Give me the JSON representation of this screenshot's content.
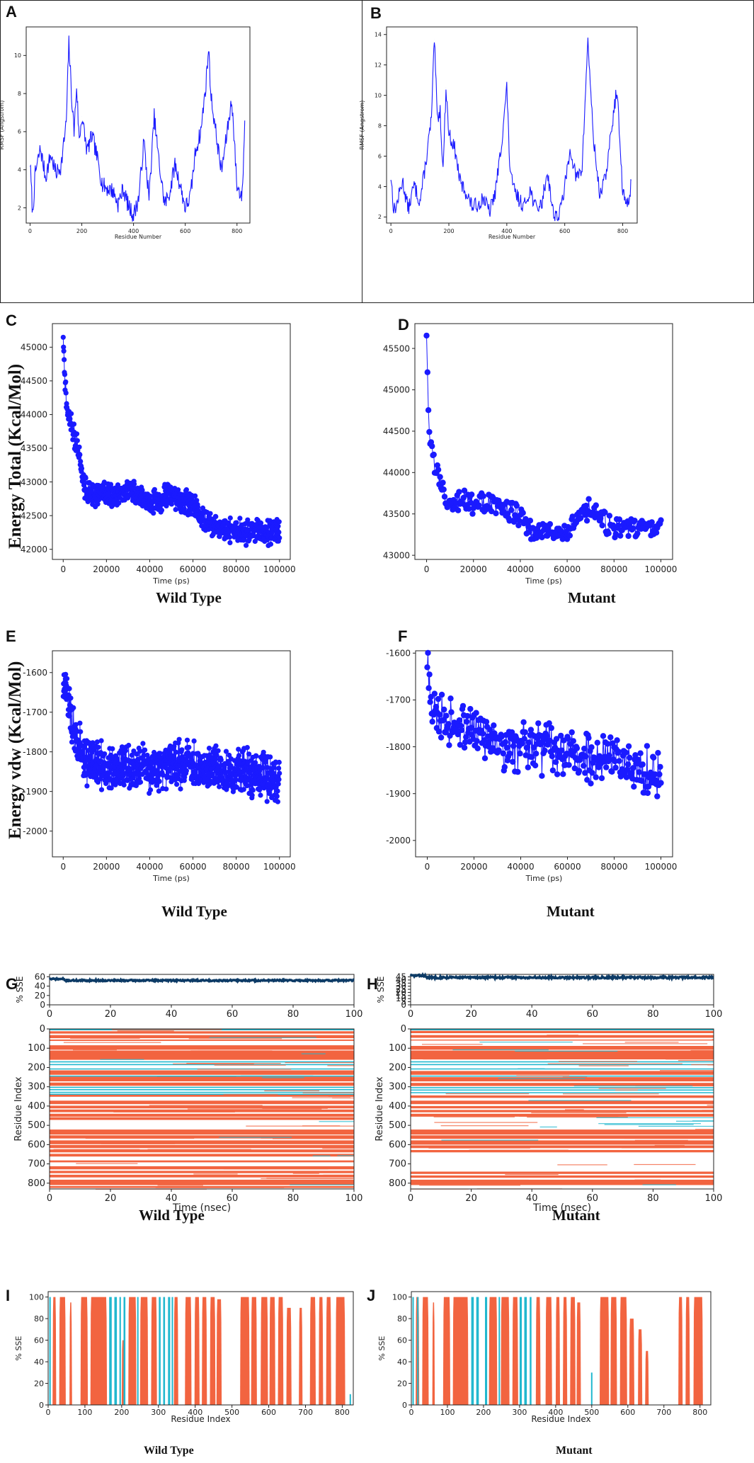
{
  "panels": {
    "A": "A",
    "B": "B",
    "C": "C",
    "D": "D",
    "E": "E",
    "F": "F",
    "G": "G",
    "H": "H",
    "I": "I",
    "J": "J"
  },
  "captions": {
    "wild_type": "Wild Type",
    "mutant": "Mutant"
  },
  "row_labels": {
    "energy_total": "Energy Total (Kcal/Mol)",
    "energy_vdw": "Energy vdw (Kcal/Mol)"
  },
  "colors": {
    "line": "#1a1aff",
    "sse_line": "#0d3b66",
    "helix": "#f26440",
    "strand": "#22b8cf"
  },
  "chart_data": [
    {
      "id": "A",
      "type": "line",
      "xlabel": "Residue Number",
      "ylabel": "RMSF (Angstrom)",
      "xlim": [
        -15,
        850
      ],
      "ylim": [
        1.2,
        11.5
      ],
      "xticks": [
        0,
        200,
        400,
        600,
        800
      ],
      "yticks": [
        2,
        4,
        6,
        8,
        10
      ],
      "x": [
        0,
        10,
        20,
        40,
        60,
        80,
        100,
        120,
        140,
        150,
        160,
        170,
        180,
        190,
        200,
        220,
        240,
        260,
        280,
        300,
        320,
        340,
        360,
        380,
        400,
        420,
        440,
        460,
        480,
        500,
        520,
        540,
        560,
        580,
        600,
        620,
        640,
        660,
        680,
        690,
        700,
        720,
        740,
        760,
        780,
        800,
        820,
        830
      ],
      "values": [
        4.4,
        1.6,
        3.8,
        5.1,
        3.6,
        4.8,
        3.8,
        4.2,
        6.5,
        10.7,
        8.0,
        6.0,
        8.4,
        5.5,
        6.8,
        5.0,
        5.8,
        4.6,
        3.2,
        3.0,
        2.9,
        2.2,
        3.0,
        2.1,
        1.6,
        2.5,
        5.5,
        2.5,
        6.8,
        4.2,
        2.2,
        2.8,
        4.3,
        3.2,
        2.0,
        2.6,
        5.0,
        6.0,
        8.5,
        10.4,
        7.8,
        5.8,
        3.9,
        5.8,
        7.7,
        3.1,
        2.6,
        6.4
      ]
    },
    {
      "id": "B",
      "type": "line",
      "xlabel": "Residue Number",
      "ylabel": "RMSF (Angstrom)",
      "xlim": [
        -15,
        850
      ],
      "ylim": [
        1.6,
        14.5
      ],
      "xticks": [
        0,
        200,
        400,
        600,
        800
      ],
      "yticks": [
        2,
        4,
        6,
        8,
        10,
        12,
        14
      ],
      "x": [
        0,
        10,
        20,
        40,
        60,
        80,
        100,
        120,
        140,
        150,
        160,
        170,
        180,
        190,
        200,
        220,
        240,
        260,
        280,
        300,
        320,
        340,
        360,
        380,
        400,
        410,
        420,
        440,
        460,
        480,
        500,
        520,
        540,
        560,
        580,
        600,
        620,
        640,
        660,
        680,
        690,
        700,
        720,
        740,
        760,
        780,
        800,
        820,
        830
      ],
      "values": [
        4.7,
        2.4,
        2.8,
        4.4,
        2.5,
        4.1,
        3.0,
        5.5,
        8.5,
        13.7,
        8.5,
        9.0,
        5.0,
        10.5,
        7.5,
        6.5,
        4.2,
        3.6,
        2.7,
        2.8,
        3.3,
        2.3,
        3.6,
        6.5,
        10.5,
        5.5,
        4.0,
        3.2,
        2.7,
        3.8,
        2.6,
        2.8,
        5.0,
        2.3,
        2.0,
        4.0,
        6.5,
        4.5,
        5.2,
        13.8,
        10.0,
        7.0,
        3.5,
        4.5,
        7.5,
        10.5,
        3.5,
        2.8,
        4.5
      ]
    },
    {
      "id": "C",
      "type": "line",
      "xlabel": "Time (ps)",
      "ylabel": "Energy Total (Kcal/Mol)",
      "xlim": [
        -5000,
        105000
      ],
      "ylim": [
        41850,
        45350
      ],
      "xticks": [
        0,
        20000,
        40000,
        60000,
        80000,
        100000
      ],
      "yticks": [
        42000,
        42500,
        43000,
        43500,
        44000,
        44500,
        45000
      ],
      "x": [
        0,
        1000,
        2000,
        4000,
        6000,
        8000,
        10000,
        15000,
        20000,
        25000,
        30000,
        35000,
        40000,
        45000,
        50000,
        55000,
        60000,
        63000,
        65000,
        70000,
        75000,
        80000,
        85000,
        90000,
        95000,
        100000
      ],
      "values": [
        45200,
        44400,
        44000,
        43800,
        43600,
        43300,
        42900,
        42800,
        42850,
        42750,
        42900,
        42800,
        42700,
        42750,
        42800,
        42700,
        42700,
        42500,
        42450,
        42350,
        42300,
        42250,
        42250,
        42280,
        42250,
        42250
      ],
      "noise": 220
    },
    {
      "id": "D",
      "type": "line",
      "xlabel": "Time (ps)",
      "ylabel": "Energy Total (Kcal/Mol)",
      "xlim": [
        -5000,
        105000
      ],
      "ylim": [
        42950,
        45800
      ],
      "xticks": [
        0,
        20000,
        40000,
        60000,
        80000,
        100000
      ],
      "yticks": [
        43000,
        43500,
        44000,
        44500,
        45000,
        45500
      ],
      "x": [
        0,
        1000,
        2000,
        4000,
        6000,
        8000,
        10000,
        15000,
        20000,
        25000,
        30000,
        35000,
        40000,
        45000,
        50000,
        55000,
        60000,
        65000,
        70000,
        75000,
        80000,
        85000,
        90000,
        95000,
        100000
      ],
      "values": [
        45700,
        44500,
        44300,
        44000,
        43900,
        43700,
        43650,
        43700,
        43600,
        43650,
        43600,
        43550,
        43500,
        43300,
        43350,
        43300,
        43250,
        43450,
        43550,
        43450,
        43300,
        43300,
        43350,
        43300,
        43350
      ],
      "noise": 170
    },
    {
      "id": "E",
      "type": "line",
      "xlabel": "Time (ps)",
      "ylabel": "Energy vdw (Kcal/Mol)",
      "xlim": [
        -5000,
        105000
      ],
      "ylim": [
        -2065,
        -1545
      ],
      "xticks": [
        0,
        20000,
        40000,
        60000,
        80000,
        100000
      ],
      "yticks": [
        -2000,
        -1900,
        -1800,
        -1700,
        -1600
      ],
      "x": [
        0,
        1000,
        2000,
        4000,
        6000,
        8000,
        10000,
        20000,
        30000,
        40000,
        50000,
        60000,
        70000,
        80000,
        90000,
        100000
      ],
      "values": [
        -1640,
        -1630,
        -1680,
        -1720,
        -1760,
        -1790,
        -1820,
        -1840,
        -1845,
        -1840,
        -1830,
        -1840,
        -1840,
        -1850,
        -1860,
        -1870
      ],
      "noise": 70
    },
    {
      "id": "F",
      "type": "line",
      "xlabel": "Time (ps)",
      "ylabel": "Energy vdw (Kcal/Mol)",
      "xlim": [
        -5000,
        105000
      ],
      "ylim": [
        -2035,
        -1595
      ],
      "xticks": [
        0,
        20000,
        40000,
        60000,
        80000,
        100000
      ],
      "yticks": [
        -2000,
        -1900,
        -1800,
        -1700,
        -1600
      ],
      "x": [
        0,
        1000,
        2000,
        5000,
        10000,
        20000,
        30000,
        40000,
        50000,
        60000,
        70000,
        80000,
        90000,
        100000
      ],
      "values": [
        -1610,
        -1700,
        -1720,
        -1740,
        -1750,
        -1770,
        -1800,
        -1800,
        -1800,
        -1810,
        -1820,
        -1830,
        -1840,
        -1880
      ],
      "noise": 65
    },
    {
      "id": "G",
      "type": "heatmap",
      "top_ylabel": "% SSE",
      "top_yticks": [
        0,
        20,
        40,
        60
      ],
      "top_ylim": [
        0,
        65
      ],
      "top_level": 52,
      "xlabel": "Time (nsec)",
      "ylabel": "Residue Index",
      "xlim": [
        0,
        100
      ],
      "xticks": [
        0,
        20,
        40,
        60,
        80,
        100
      ],
      "yticks": [
        0,
        100,
        200,
        300,
        400,
        500,
        600,
        700,
        800
      ],
      "ylim": [
        0,
        830
      ],
      "helix_bands": [
        [
          12,
          24
        ],
        [
          32,
          48
        ],
        [
          55,
          62
        ],
        [
          85,
          108
        ],
        [
          112,
          160
        ],
        [
          215,
          238
        ],
        [
          248,
          272
        ],
        [
          278,
          295
        ],
        [
          338,
          352
        ],
        [
          372,
          390
        ],
        [
          398,
          412
        ],
        [
          418,
          432
        ],
        [
          440,
          455
        ],
        [
          458,
          472
        ],
        [
          522,
          548
        ],
        [
          552,
          568
        ],
        [
          578,
          598
        ],
        [
          602,
          618
        ],
        [
          625,
          640
        ],
        [
          648,
          662
        ],
        [
          682,
          692
        ],
        [
          712,
          728
        ],
        [
          736,
          748
        ],
        [
          756,
          770
        ],
        [
          782,
          810
        ],
        [
          815,
          825
        ]
      ],
      "strand_bands": [
        [
          2,
          6
        ],
        [
          168,
          174
        ],
        [
          182,
          188
        ],
        [
          205,
          210
        ],
        [
          242,
          245
        ],
        [
          300,
          306
        ],
        [
          312,
          318
        ],
        [
          326,
          330
        ],
        [
          336,
          339
        ]
      ]
    },
    {
      "id": "H",
      "type": "heatmap",
      "top_ylabel": "% SSE",
      "top_yticks": [
        0,
        5,
        10,
        15,
        20,
        25,
        30,
        35,
        40,
        45
      ],
      "top_ylim": [
        0,
        49
      ],
      "top_level": 44,
      "xlabel": "Time (nsec)",
      "ylabel": "Residue Index",
      "xlim": [
        0,
        100
      ],
      "xticks": [
        0,
        20,
        40,
        60,
        80,
        100
      ],
      "yticks": [
        0,
        100,
        200,
        300,
        400,
        500,
        600,
        700,
        800
      ],
      "ylim": [
        0,
        830
      ],
      "helix_bands": [
        [
          10,
          22
        ],
        [
          32,
          46
        ],
        [
          55,
          60
        ],
        [
          88,
          108
        ],
        [
          112,
          158
        ],
        [
          218,
          238
        ],
        [
          250,
          272
        ],
        [
          280,
          296
        ],
        [
          345,
          358
        ],
        [
          372,
          390
        ],
        [
          400,
          412
        ],
        [
          420,
          432
        ],
        [
          440,
          455
        ],
        [
          522,
          548
        ],
        [
          552,
          570
        ],
        [
          578,
          600
        ],
        [
          604,
          618
        ],
        [
          628,
          640
        ],
        [
          740,
          752
        ],
        [
          760,
          772
        ],
        [
          782,
          810
        ]
      ],
      "strand_bands": [
        [
          2,
          6
        ],
        [
          168,
          174
        ],
        [
          182,
          188
        ],
        [
          205,
          210
        ],
        [
          242,
          245
        ],
        [
          302,
          308
        ],
        [
          314,
          320
        ],
        [
          328,
          333
        ]
      ]
    },
    {
      "id": "I",
      "type": "area",
      "xlabel": "Residue Index",
      "ylabel": "% SSE",
      "xlim": [
        0,
        830
      ],
      "ylim": [
        0,
        105
      ],
      "xticks": [
        0,
        100,
        200,
        300,
        400,
        500,
        600,
        700,
        800
      ],
      "yticks": [
        0,
        20,
        40,
        60,
        80,
        100
      ],
      "helix": [
        [
          12,
          22,
          100
        ],
        [
          30,
          48,
          100
        ],
        [
          58,
          65,
          95
        ],
        [
          88,
          108,
          100
        ],
        [
          115,
          160,
          100
        ],
        [
          200,
          210,
          60
        ],
        [
          218,
          240,
          100
        ],
        [
          250,
          272,
          100
        ],
        [
          280,
          296,
          100
        ],
        [
          342,
          354,
          100
        ],
        [
          372,
          390,
          100
        ],
        [
          398,
          412,
          100
        ],
        [
          418,
          432,
          100
        ],
        [
          440,
          455,
          100
        ],
        [
          458,
          472,
          98
        ],
        [
          522,
          548,
          100
        ],
        [
          552,
          568,
          100
        ],
        [
          578,
          598,
          100
        ],
        [
          602,
          618,
          100
        ],
        [
          625,
          640,
          100
        ],
        [
          648,
          662,
          90
        ],
        [
          682,
          692,
          90
        ],
        [
          712,
          728,
          100
        ],
        [
          736,
          748,
          100
        ],
        [
          756,
          770,
          100
        ],
        [
          782,
          808,
          100
        ]
      ],
      "strand": [
        [
          3,
          7,
          100
        ],
        [
          166,
          173,
          100
        ],
        [
          180,
          187,
          100
        ],
        [
          194,
          198,
          100
        ],
        [
          205,
          210,
          100
        ],
        [
          242,
          245,
          100
        ],
        [
          301,
          306,
          100
        ],
        [
          313,
          318,
          100
        ],
        [
          326,
          332,
          100
        ],
        [
          336,
          339,
          100
        ],
        [
          820,
          822,
          10
        ]
      ]
    },
    {
      "id": "J",
      "type": "area",
      "xlabel": "Residue Index",
      "ylabel": "% SSE",
      "xlim": [
        0,
        830
      ],
      "ylim": [
        0,
        105
      ],
      "xticks": [
        0,
        100,
        200,
        300,
        400,
        500,
        600,
        700,
        800
      ],
      "yticks": [
        0,
        20,
        40,
        60,
        80,
        100
      ],
      "helix": [
        [
          12,
          22,
          100
        ],
        [
          30,
          48,
          100
        ],
        [
          58,
          65,
          95
        ],
        [
          88,
          108,
          100
        ],
        [
          115,
          158,
          100
        ],
        [
          215,
          238,
          100
        ],
        [
          248,
          272,
          100
        ],
        [
          280,
          296,
          100
        ],
        [
          345,
          358,
          100
        ],
        [
          372,
          390,
          100
        ],
        [
          400,
          412,
          100
        ],
        [
          420,
          432,
          100
        ],
        [
          440,
          455,
          100
        ],
        [
          458,
          470,
          95
        ],
        [
          522,
          548,
          100
        ],
        [
          552,
          570,
          100
        ],
        [
          578,
          598,
          100
        ],
        [
          604,
          618,
          80
        ],
        [
          628,
          640,
          70
        ],
        [
          648,
          658,
          50
        ],
        [
          740,
          752,
          100
        ],
        [
          760,
          772,
          100
        ],
        [
          782,
          808,
          100
        ]
      ],
      "strand": [
        [
          3,
          7,
          100
        ],
        [
          16,
          20,
          100
        ],
        [
          166,
          173,
          100
        ],
        [
          180,
          187,
          100
        ],
        [
          204,
          210,
          100
        ],
        [
          242,
          245,
          100
        ],
        [
          300,
          306,
          100
        ],
        [
          313,
          320,
          100
        ],
        [
          328,
          333,
          100
        ],
        [
          498,
          502,
          30
        ]
      ]
    }
  ]
}
